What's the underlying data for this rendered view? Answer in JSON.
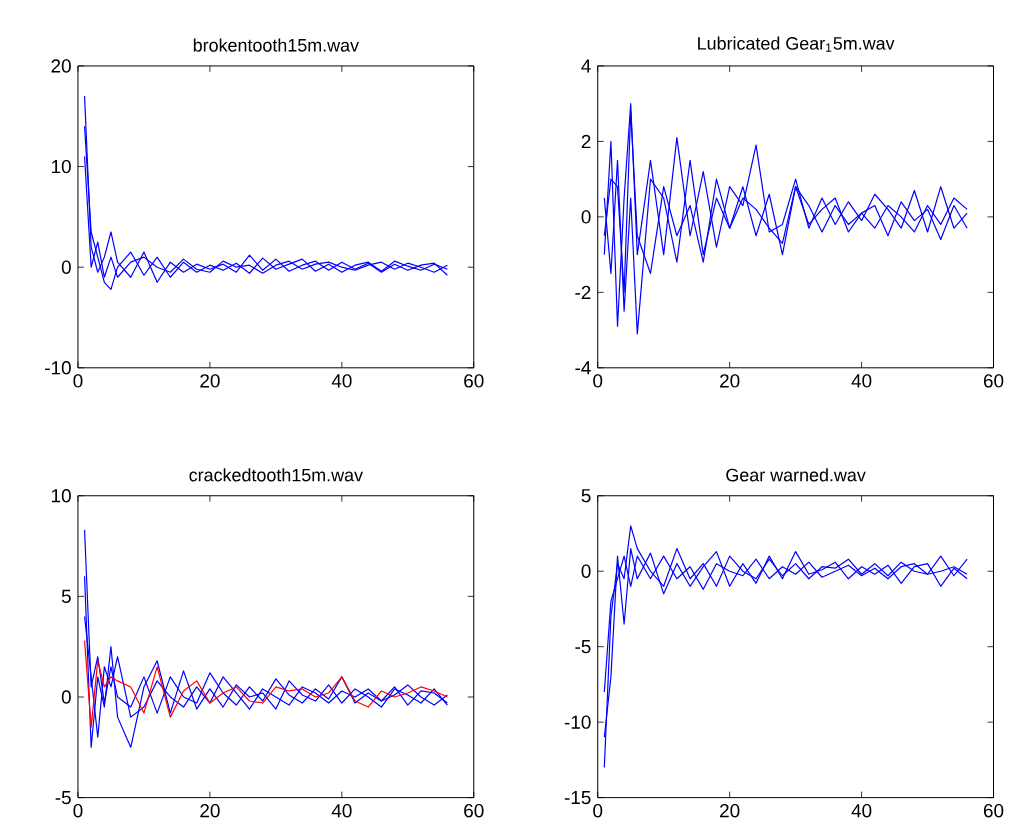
{
  "chart_data": [
    {
      "type": "line",
      "title": "brokentooth15m.wav",
      "xlim": [
        0,
        60
      ],
      "xticks": [
        0,
        20,
        40,
        60
      ],
      "ylim": [
        -10,
        20
      ],
      "yticks": [
        -10,
        0,
        10,
        20
      ],
      "grid": false,
      "marker": "none",
      "line_style": "solid",
      "x": [
        1,
        2,
        3,
        4,
        5,
        6,
        8,
        10,
        12,
        14,
        16,
        18,
        20,
        22,
        24,
        26,
        28,
        30,
        32,
        34,
        36,
        38,
        40,
        42,
        44,
        46,
        48,
        50,
        52,
        54,
        56
      ],
      "series": [
        {
          "color": "#0000ff",
          "values": [
            17,
            2,
            -0.5,
            1,
            3.5,
            0.5,
            -1,
            1.5,
            -1.5,
            0.5,
            -0.5,
            0.3,
            -0.2,
            0.3,
            -0.5,
            1.2,
            -0.3,
            0.8,
            -0.4,
            0.2,
            0.6,
            -0.3,
            0.5,
            -0.2,
            0.4,
            -0.5,
            0.3,
            -0.3,
            0.2,
            0.4,
            -0.8
          ]
        },
        {
          "color": "#0000ff",
          "values": [
            14,
            3.5,
            1,
            -1.5,
            -2.2,
            0,
            1.5,
            -0.8,
            1,
            -1,
            0.5,
            -0.5,
            0.2,
            -0.3,
            0.4,
            -0.6,
            0.9,
            -0.2,
            0.3,
            0.8,
            -0.4,
            0.3,
            -0.5,
            0.2,
            0.5,
            -0.4,
            0.6,
            0.1,
            -0.3,
            0.3,
            -0.2
          ]
        },
        {
          "color": "#0000ff",
          "values": [
            11,
            0,
            2.5,
            -1,
            1,
            -1,
            0.5,
            1,
            0,
            -0.5,
            0.8,
            -0.2,
            -0.5,
            0.6,
            0,
            0.2,
            -0.6,
            0.2,
            0.6,
            -0.2,
            0.3,
            0.5,
            0,
            -0.3,
            0.2,
            0.5,
            -0.2,
            0.4,
            0,
            -0.5,
            0.2
          ]
        }
      ]
    },
    {
      "type": "line",
      "title": "Lubricated Gear$_{1}$5m.wav",
      "xlim": [
        0,
        60
      ],
      "xticks": [
        0,
        20,
        40,
        60
      ],
      "ylim": [
        -4,
        4
      ],
      "yticks": [
        -4,
        -2,
        0,
        2,
        4
      ],
      "grid": false,
      "marker": "none",
      "line_style": "solid",
      "x": [
        1,
        2,
        3,
        4,
        5,
        6,
        8,
        10,
        12,
        14,
        16,
        18,
        20,
        22,
        24,
        26,
        28,
        30,
        32,
        34,
        36,
        38,
        40,
        42,
        44,
        46,
        48,
        50,
        52,
        54,
        56
      ],
      "series": [
        {
          "color": "#0000ff",
          "values": [
            -1,
            2,
            -2.9,
            0.5,
            3,
            -1,
            1.5,
            -1,
            2.1,
            -0.5,
            1.2,
            -0.8,
            0.8,
            0.3,
            1.9,
            -0.4,
            -0.2,
            1,
            -0.3,
            0.5,
            -0.2,
            0.4,
            -0.1,
            0.6,
            0.2,
            -0.3,
            0.7,
            -0.4,
            0.8,
            -0.3,
            0.1
          ]
        },
        {
          "color": "#0000ff",
          "values": [
            0.5,
            -1.5,
            1.5,
            -2.5,
            0.5,
            -3.1,
            1,
            0.5,
            -1.2,
            1.5,
            -1,
            0.5,
            -0.3,
            0.8,
            -0.5,
            0.6,
            -1,
            0.8,
            0.3,
            -0.4,
            0.3,
            -0.2,
            0.1,
            -0.3,
            0.3,
            0,
            -0.4,
            0.3,
            -0.2,
            0.5,
            0.2
          ]
        },
        {
          "color": "#0000ff",
          "values": [
            -0.5,
            1,
            0.8,
            -2,
            2.8,
            -0.5,
            -1.5,
            0.8,
            -0.5,
            0.3,
            -1.2,
            1,
            -0.3,
            0.5,
            0.2,
            -0.3,
            -0.7,
            0.8,
            -0.2,
            0.2,
            0.5,
            -0.4,
            0.1,
            0.3,
            -0.5,
            0.4,
            -0.1,
            0.2,
            -0.6,
            0.3,
            -0.3
          ]
        }
      ]
    },
    {
      "type": "line",
      "title": "crackedtooth15m.wav",
      "xlim": [
        0,
        60
      ],
      "xticks": [
        0,
        20,
        40,
        60
      ],
      "ylim": [
        -5,
        10
      ],
      "yticks": [
        -5,
        0,
        5,
        10
      ],
      "grid": false,
      "marker": "none",
      "line_style": "solid",
      "x": [
        1,
        2,
        3,
        4,
        5,
        6,
        8,
        10,
        12,
        14,
        16,
        18,
        20,
        22,
        24,
        26,
        28,
        30,
        32,
        34,
        36,
        38,
        40,
        42,
        44,
        46,
        48,
        50,
        52,
        54,
        56
      ],
      "series": [
        {
          "color": "#0000ff",
          "values": [
            8.3,
            0.5,
            2,
            -0.3,
            1.5,
            0,
            -0.5,
            1,
            -0.8,
            1,
            0,
            -0.3,
            1.2,
            0.2,
            -0.4,
            0.5,
            -0.2,
            0.9,
            0.1,
            -0.3,
            0.4,
            -0.1,
            1,
            -0.3,
            0.2,
            -0.2,
            0.5,
            -0.4,
            0.3,
            0.2,
            -0.3
          ]
        },
        {
          "color": "#0000ff",
          "values": [
            6,
            -2.5,
            1,
            -0.5,
            2.5,
            -1,
            -2.5,
            0.5,
            1.8,
            -0.8,
            1.3,
            -0.6,
            0.4,
            -0.5,
            0.6,
            0,
            0.2,
            -0.6,
            0.8,
            0.1,
            -0.2,
            0.6,
            -0.3,
            0.4,
            0,
            -0.5,
            0.4,
            0.1,
            -0.3,
            0.4,
            -0.4
          ]
        },
        {
          "color": "#0000ff",
          "values": [
            4,
            1,
            -2,
            1.5,
            0.5,
            2,
            -1,
            -0.5,
            0.8,
            0,
            -0.5,
            0.5,
            -0.3,
            1,
            0.2,
            -0.6,
            0.4,
            0,
            -0.4,
            0.5,
            0.2,
            -0.3,
            0.3,
            0,
            0.4,
            -0.2,
            0.1,
            0.6,
            0,
            -0.4,
            0.1
          ]
        },
        {
          "color": "#ff0000",
          "values": [
            2.8,
            -1.5,
            1.8,
            0.5,
            1,
            0.8,
            0.5,
            -0.8,
            1.5,
            -1,
            0.3,
            0.8,
            -0.3,
            0.2,
            0.5,
            -0.2,
            -0.3,
            0.5,
            0.3,
            0.4,
            0,
            0.2,
            1,
            -0.2,
            -0.5,
            0.3,
            0,
            0.2,
            0.5,
            0.3,
            0
          ]
        }
      ]
    },
    {
      "type": "line",
      "title": "Gear warned.wav",
      "xlim": [
        0,
        60
      ],
      "xticks": [
        0,
        20,
        40,
        60
      ],
      "ylim": [
        -15,
        5
      ],
      "yticks": [
        -15,
        -10,
        -5,
        0,
        5
      ],
      "grid": false,
      "marker": "none",
      "line_style": "solid",
      "x": [
        1,
        2,
        3,
        4,
        5,
        6,
        8,
        10,
        12,
        14,
        16,
        18,
        20,
        22,
        24,
        26,
        28,
        30,
        32,
        34,
        36,
        38,
        40,
        42,
        44,
        46,
        48,
        50,
        52,
        54,
        56
      ],
      "series": [
        {
          "color": "#0000ff",
          "values": [
            -13,
            -3,
            0.5,
            -0.5,
            3,
            1.5,
            0,
            -1,
            1.5,
            -0.5,
            0.5,
            -1,
            1,
            0,
            -0.5,
            0.8,
            -0.3,
            0.5,
            -0.5,
            0.3,
            0.2,
            0.8,
            -0.2,
            0.5,
            -0.3,
            0.6,
            0,
            -0.2,
            1,
            -0.3,
            0.8
          ]
        },
        {
          "color": "#0000ff",
          "values": [
            -11,
            -7,
            1,
            -3.5,
            1.5,
            -0.5,
            1.2,
            -1.5,
            0.5,
            -1,
            0.3,
            1.3,
            -1,
            0.5,
            -0.8,
            1,
            -0.5,
            1.3,
            -0.2,
            0.1,
            0.6,
            -0.5,
            0.3,
            -0.2,
            0.4,
            -0.8,
            0.3,
            0.5,
            -1,
            0.2,
            -0.5
          ]
        },
        {
          "color": "#0000ff",
          "values": [
            -8,
            -2,
            -0.5,
            1,
            -1,
            1,
            -0.5,
            1,
            -0.5,
            0.3,
            -1.2,
            0.5,
            0,
            -0.3,
            0.8,
            -0.5,
            0.3,
            -0.2,
            0.6,
            -0.4,
            0,
            0.4,
            -0.3,
            0.2,
            -0.5,
            0.3,
            0.5,
            -0.2,
            0,
            0.3,
            -0.2
          ]
        }
      ]
    }
  ]
}
